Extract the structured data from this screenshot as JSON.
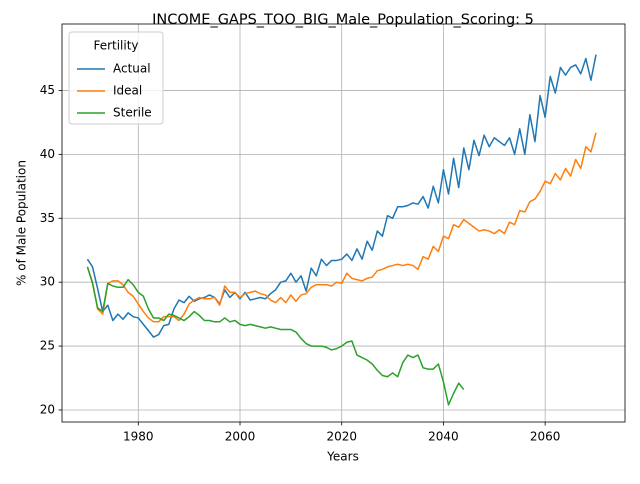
{
  "chart_data": {
    "type": "line",
    "title": "INCOME_GAPS_TOO_BIG_Male_Population_Scoring: 5",
    "xlabel": "Years",
    "ylabel": "% of Male Population",
    "legend_title": "Fertility",
    "legend": "upper left",
    "grid": true,
    "xlim": [
      1965,
      2075.7
    ],
    "ylim": [
      19.06,
      50.2
    ],
    "xticks": [
      1980,
      2000,
      2020,
      2040,
      2060
    ],
    "yticks": [
      20,
      25,
      30,
      35,
      40,
      45
    ],
    "x": [
      1970,
      1971,
      1972,
      1973,
      1974,
      1975,
      1976,
      1977,
      1978,
      1979,
      1980,
      1981,
      1982,
      1983,
      1984,
      1985,
      1986,
      1987,
      1988,
      1989,
      1990,
      1991,
      1992,
      1993,
      1994,
      1995,
      1996,
      1997,
      1998,
      1999,
      2000,
      2001,
      2002,
      2003,
      2004,
      2005,
      2006,
      2007,
      2008,
      2009,
      2010,
      2011,
      2012,
      2013,
      2014,
      2015,
      2016,
      2017,
      2018,
      2019,
      2020,
      2021,
      2022,
      2023,
      2024,
      2025,
      2026,
      2027,
      2028,
      2029,
      2030,
      2031,
      2032,
      2033,
      2034,
      2035,
      2036,
      2037,
      2038,
      2039,
      2040,
      2041,
      2042,
      2043,
      2044,
      2045,
      2046,
      2047,
      2048,
      2049,
      2050,
      2051,
      2052,
      2053,
      2054,
      2055,
      2056,
      2057,
      2058,
      2059,
      2060,
      2061,
      2062,
      2063,
      2064,
      2065,
      2066,
      2067,
      2068,
      2069,
      2070
    ],
    "series": [
      {
        "name": "Actual",
        "color": "#1f77b4",
        "values": [
          31.8,
          31.2,
          29.5,
          27.7,
          28.2,
          27.0,
          27.5,
          27.1,
          27.6,
          27.3,
          27.2,
          26.7,
          26.2,
          25.7,
          25.9,
          26.6,
          26.7,
          27.9,
          28.6,
          28.4,
          28.9,
          28.5,
          28.7,
          28.8,
          29.0,
          28.8,
          28.3,
          29.4,
          28.8,
          29.2,
          28.7,
          29.2,
          28.6,
          28.7,
          28.8,
          28.7,
          29.1,
          29.4,
          30.0,
          30.1,
          30.7,
          30.0,
          30.5,
          29.3,
          31.1,
          30.5,
          31.8,
          31.3,
          31.7,
          31.7,
          31.8,
          32.2,
          31.7,
          32.6,
          31.8,
          33.2,
          32.5,
          34.0,
          33.6,
          35.2,
          35.0,
          35.9,
          35.9,
          36.0,
          36.2,
          36.1,
          36.7,
          35.8,
          37.5,
          36.2,
          38.8,
          36.9,
          39.7,
          37.4,
          40.5,
          38.8,
          41.1,
          39.9,
          41.5,
          40.6,
          41.3,
          41.0,
          40.7,
          41.3,
          40.0,
          42.0,
          40.0,
          43.1,
          41.0,
          44.6,
          42.9,
          46.1,
          44.8,
          46.8,
          46.2,
          46.8,
          47.0,
          46.3,
          47.5,
          45.8,
          47.8
        ]
      },
      {
        "name": "Ideal",
        "color": "#ff7f0e",
        "values": [
          31.2,
          30.0,
          27.9,
          27.5,
          29.9,
          30.1,
          30.1,
          29.8,
          29.2,
          28.9,
          28.3,
          27.7,
          27.2,
          26.9,
          26.9,
          27.3,
          27.3,
          27.3,
          27.0,
          27.5,
          28.3,
          28.6,
          28.8,
          28.7,
          28.7,
          28.8,
          28.2,
          29.7,
          29.2,
          29.2,
          28.8,
          29.1,
          29.2,
          29.3,
          29.1,
          29.0,
          28.6,
          28.4,
          28.8,
          28.4,
          29.0,
          28.5,
          29.0,
          29.1,
          29.6,
          29.8,
          29.8,
          29.8,
          29.7,
          30.0,
          29.9,
          30.7,
          30.3,
          30.2,
          30.1,
          30.3,
          30.4,
          30.9,
          31.0,
          31.2,
          31.3,
          31.4,
          31.3,
          31.4,
          31.3,
          31.0,
          32.0,
          31.8,
          32.8,
          32.4,
          33.6,
          33.4,
          34.5,
          34.3,
          34.9,
          34.6,
          34.3,
          34.0,
          34.1,
          34.0,
          33.8,
          34.1,
          33.8,
          34.7,
          34.5,
          35.6,
          35.5,
          36.3,
          36.5,
          37.1,
          37.9,
          37.7,
          38.5,
          38.0,
          38.9,
          38.3,
          39.6,
          38.9,
          40.6,
          40.2,
          41.7
        ]
      },
      {
        "name": "Sterile",
        "color": "#2ca02c",
        "values": [
          31.2,
          29.9,
          28.0,
          27.7,
          29.9,
          29.7,
          29.6,
          29.6,
          30.2,
          29.8,
          29.2,
          28.9,
          27.9,
          27.2,
          27.2,
          27.0,
          27.5,
          27.4,
          27.2,
          27.0,
          27.3,
          27.7,
          27.4,
          27.0,
          27.0,
          26.9,
          26.9,
          27.2,
          26.9,
          27.0,
          26.7,
          26.6,
          26.7,
          26.6,
          26.5,
          26.4,
          26.5,
          26.4,
          26.3,
          26.3,
          26.3,
          26.1,
          25.6,
          25.2,
          25.0,
          25.0,
          25.0,
          24.9,
          24.7,
          24.8,
          25.0,
          25.3,
          25.4,
          24.3,
          24.1,
          23.9,
          23.6,
          23.1,
          22.7,
          22.6,
          22.9,
          22.6,
          23.7,
          24.3,
          24.1,
          24.3,
          23.3,
          23.2,
          23.2,
          23.6,
          22.2,
          20.4,
          21.3,
          22.1,
          21.6,
          null,
          null,
          null,
          null,
          null,
          null,
          null,
          null,
          null,
          null,
          null,
          null,
          null,
          null,
          null,
          null,
          null,
          null,
          null,
          null,
          null,
          null,
          null,
          null,
          null,
          null
        ]
      }
    ]
  }
}
